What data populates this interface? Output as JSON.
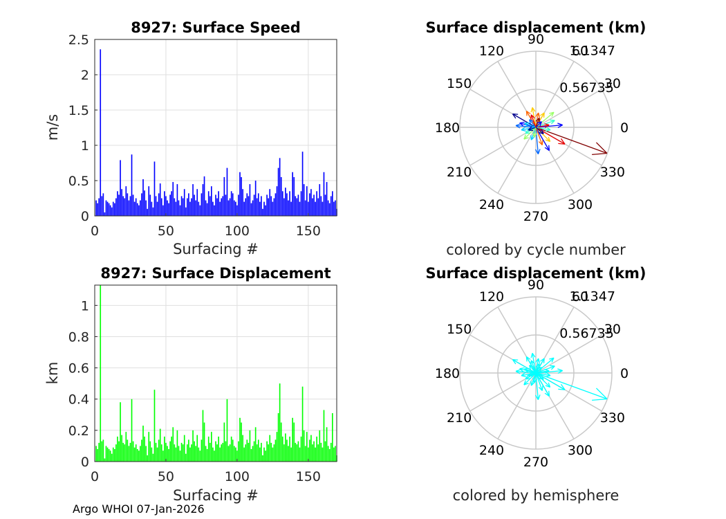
{
  "chart_data": [
    {
      "type": "bar",
      "title": "8927: Surface Speed",
      "xlabel": "Surfacing #",
      "ylabel": "m/s",
      "xlim": [
        0,
        170
      ],
      "ylim": [
        0,
        2.5
      ],
      "xticks": [
        "0",
        "50",
        "100",
        "150"
      ],
      "yticks": [
        "0",
        "0.5",
        "1",
        "1.5",
        "2",
        "2.5"
      ],
      "color": "#0000ff",
      "values": [
        0.22,
        0.18,
        0.25,
        2.36,
        0.28,
        0.32,
        0.05,
        0.22,
        0.2,
        0.18,
        0.15,
        0.12,
        0.2,
        0.18,
        0.25,
        0.35,
        0.3,
        0.79,
        0.38,
        0.28,
        0.25,
        0.42,
        0.32,
        0.22,
        0.28,
        0.87,
        0.3,
        0.2,
        0.25,
        0.18,
        0.15,
        0.22,
        0.32,
        0.52,
        0.36,
        0.22,
        0.1,
        0.42,
        0.3,
        0.2,
        0.12,
        0.77,
        0.28,
        0.2,
        0.32,
        0.46,
        0.25,
        0.15,
        0.35,
        0.28,
        0.22,
        0.18,
        0.3,
        0.35,
        0.48,
        0.25,
        0.2,
        0.45,
        0.22,
        0.15,
        0.28,
        0.25,
        0.38,
        0.12,
        0.25,
        0.32,
        0.2,
        0.25,
        0.45,
        0.3,
        0.22,
        0.38,
        0.2,
        0.15,
        0.32,
        0.45,
        0.56,
        0.22,
        0.18,
        0.35,
        0.28,
        0.42,
        0.2,
        0.15,
        0.3,
        0.25,
        0.35,
        0.2,
        0.25,
        0.28,
        0.55,
        0.3,
        0.68,
        0.22,
        0.25,
        0.35,
        0.32,
        0.22,
        0.2,
        0.15,
        0.3,
        0.62,
        0.55,
        0.38,
        0.2,
        0.25,
        0.32,
        0.28,
        0.45,
        0.18,
        0.22,
        0.3,
        0.5,
        0.25,
        0.32,
        0.2,
        0.28,
        0.1,
        0.2,
        0.15,
        0.3,
        0.25,
        0.38,
        0.28,
        0.2,
        0.25,
        0.32,
        0.42,
        0.68,
        0.82,
        0.55,
        0.35,
        0.25,
        0.4,
        0.32,
        0.22,
        0.35,
        0.2,
        0.62,
        0.55,
        0.28,
        0.25,
        0.3,
        0.2,
        0.35,
        0.91,
        0.45,
        0.22,
        0.42,
        0.2,
        0.32,
        0.38,
        0.25,
        0.3,
        0.2,
        0.35,
        0.25,
        0.45,
        0.28,
        0.2,
        0.62,
        0.3,
        0.48,
        0.22,
        0.18,
        0.28,
        0.35,
        0.2,
        0.22,
        0.1
      ]
    },
    {
      "type": "bar",
      "title": "8927: Surface Displacement",
      "xlabel": "Surfacing #",
      "ylabel": "km",
      "xlim": [
        0,
        170
      ],
      "ylim": [
        0,
        1.13
      ],
      "xticks": [
        "0",
        "50",
        "100",
        "150"
      ],
      "yticks": [
        "0",
        "0.2",
        "0.4",
        "0.6",
        "0.8",
        "1"
      ],
      "color": "#00ff00",
      "values": [
        0.1,
        0.08,
        0.12,
        1.13,
        0.13,
        0.14,
        0.02,
        0.1,
        0.09,
        0.08,
        0.07,
        0.05,
        0.09,
        0.08,
        0.11,
        0.16,
        0.13,
        0.38,
        0.17,
        0.12,
        0.11,
        0.19,
        0.14,
        0.1,
        0.12,
        0.4,
        0.13,
        0.09,
        0.11,
        0.08,
        0.07,
        0.1,
        0.14,
        0.23,
        0.16,
        0.1,
        0.04,
        0.19,
        0.13,
        0.09,
        0.05,
        0.46,
        0.12,
        0.09,
        0.14,
        0.21,
        0.11,
        0.07,
        0.16,
        0.12,
        0.1,
        0.08,
        0.13,
        0.16,
        0.22,
        0.11,
        0.09,
        0.2,
        0.1,
        0.07,
        0.12,
        0.11,
        0.17,
        0.05,
        0.11,
        0.14,
        0.09,
        0.11,
        0.2,
        0.13,
        0.1,
        0.17,
        0.09,
        0.07,
        0.14,
        0.33,
        0.25,
        0.1,
        0.08,
        0.16,
        0.12,
        0.19,
        0.09,
        0.07,
        0.13,
        0.11,
        0.16,
        0.09,
        0.11,
        0.12,
        0.25,
        0.13,
        0.4,
        0.1,
        0.11,
        0.16,
        0.14,
        0.1,
        0.09,
        0.07,
        0.13,
        0.28,
        0.25,
        0.17,
        0.09,
        0.11,
        0.14,
        0.12,
        0.2,
        0.08,
        0.1,
        0.13,
        0.22,
        0.11,
        0.14,
        0.09,
        0.12,
        0.04,
        0.09,
        0.07,
        0.13,
        0.11,
        0.17,
        0.12,
        0.09,
        0.11,
        0.14,
        0.19,
        0.31,
        0.5,
        0.25,
        0.16,
        0.11,
        0.18,
        0.14,
        0.1,
        0.16,
        0.09,
        0.28,
        0.25,
        0.12,
        0.11,
        0.13,
        0.09,
        0.16,
        0.48,
        0.2,
        0.1,
        0.19,
        0.09,
        0.14,
        0.17,
        0.11,
        0.13,
        0.09,
        0.16,
        0.11,
        0.2,
        0.12,
        0.09,
        0.33,
        0.13,
        0.22,
        0.1,
        0.08,
        0.12,
        0.31,
        0.09,
        0.1,
        0.04
      ]
    },
    {
      "type": "polar",
      "title": "Surface displacement (km)",
      "caption": "colored by cycle number",
      "rticks": [
        "0.56735",
        "1.1347"
      ],
      "rmax": 1.1347,
      "theta_ticks": [
        "0",
        "30",
        "60",
        "90",
        "120",
        "150",
        "180",
        "210",
        "240",
        "270",
        "300",
        "330"
      ],
      "arrow_colors": [
        "#00008f",
        "#0000ff",
        "#0066ff",
        "#00ccff",
        "#33ffcc",
        "#99ff66",
        "#ffcc00",
        "#ff6600",
        "#e60000",
        "#800000"
      ],
      "arrows": [
        {
          "angle": 340,
          "r": 1.13,
          "ci": 9
        },
        {
          "angle": 330,
          "r": 0.5,
          "ci": 8
        },
        {
          "angle": 300,
          "r": 0.4,
          "ci": 1
        },
        {
          "angle": 275,
          "r": 0.4,
          "ci": 2
        },
        {
          "angle": 250,
          "r": 0.2,
          "ci": 3
        },
        {
          "angle": 5,
          "r": 0.4,
          "ci": 1
        },
        {
          "angle": 20,
          "r": 0.3,
          "ci": 4
        },
        {
          "angle": 40,
          "r": 0.35,
          "ci": 5
        },
        {
          "angle": 60,
          "r": 0.25,
          "ci": 6
        },
        {
          "angle": 80,
          "r": 0.22,
          "ci": 7
        },
        {
          "angle": 100,
          "r": 0.3,
          "ci": 6
        },
        {
          "angle": 120,
          "r": 0.28,
          "ci": 7
        },
        {
          "angle": 150,
          "r": 0.4,
          "ci": 0
        },
        {
          "angle": 165,
          "r": 0.25,
          "ci": 1
        },
        {
          "angle": 175,
          "r": 0.3,
          "ci": 2
        },
        {
          "angle": 190,
          "r": 0.22,
          "ci": 3
        },
        {
          "angle": 210,
          "r": 0.18,
          "ci": 4
        },
        {
          "angle": 225,
          "r": 0.25,
          "ci": 5
        },
        {
          "angle": 315,
          "r": 0.3,
          "ci": 6
        },
        {
          "angle": 290,
          "r": 0.28,
          "ci": 7
        },
        {
          "angle": 10,
          "r": 0.2,
          "ci": 8
        },
        {
          "angle": 70,
          "r": 0.15,
          "ci": 9
        },
        {
          "angle": 130,
          "r": 0.15,
          "ci": 2
        },
        {
          "angle": 200,
          "r": 0.12,
          "ci": 0
        },
        {
          "angle": 260,
          "r": 0.15,
          "ci": 5
        },
        {
          "angle": 45,
          "r": 0.12,
          "ci": 1
        },
        {
          "angle": 160,
          "r": 0.18,
          "ci": 3
        },
        {
          "angle": 350,
          "r": 0.22,
          "ci": 4
        },
        {
          "angle": 320,
          "r": 0.15,
          "ci": 0
        },
        {
          "angle": 110,
          "r": 0.2,
          "ci": 8
        }
      ]
    },
    {
      "type": "polar",
      "title": "Surface displacement (km)",
      "caption": "colored by hemisphere",
      "rticks": [
        "0.56735",
        "1.1347"
      ],
      "rmax": 1.1347,
      "theta_ticks": [
        "0",
        "30",
        "60",
        "90",
        "120",
        "150",
        "180",
        "210",
        "240",
        "270",
        "300",
        "330"
      ],
      "color": "#00ffff",
      "arrows": [
        {
          "angle": 340,
          "r": 1.13
        },
        {
          "angle": 330,
          "r": 0.5
        },
        {
          "angle": 300,
          "r": 0.4
        },
        {
          "angle": 275,
          "r": 0.4
        },
        {
          "angle": 250,
          "r": 0.2
        },
        {
          "angle": 5,
          "r": 0.4
        },
        {
          "angle": 20,
          "r": 0.3
        },
        {
          "angle": 40,
          "r": 0.35
        },
        {
          "angle": 60,
          "r": 0.25
        },
        {
          "angle": 80,
          "r": 0.22
        },
        {
          "angle": 100,
          "r": 0.3
        },
        {
          "angle": 120,
          "r": 0.28
        },
        {
          "angle": 150,
          "r": 0.4
        },
        {
          "angle": 165,
          "r": 0.25
        },
        {
          "angle": 175,
          "r": 0.3
        },
        {
          "angle": 190,
          "r": 0.22
        },
        {
          "angle": 210,
          "r": 0.18
        },
        {
          "angle": 225,
          "r": 0.25
        },
        {
          "angle": 315,
          "r": 0.3
        },
        {
          "angle": 290,
          "r": 0.28
        },
        {
          "angle": 10,
          "r": 0.2
        },
        {
          "angle": 70,
          "r": 0.15
        },
        {
          "angle": 130,
          "r": 0.15
        },
        {
          "angle": 200,
          "r": 0.12
        },
        {
          "angle": 260,
          "r": 0.15
        },
        {
          "angle": 45,
          "r": 0.12
        },
        {
          "angle": 160,
          "r": 0.18
        },
        {
          "angle": 350,
          "r": 0.22
        },
        {
          "angle": 320,
          "r": 0.15
        },
        {
          "angle": 110,
          "r": 0.2
        }
      ]
    }
  ],
  "footer": {
    "text": "Argo WHOI 07-Jan-2026"
  }
}
